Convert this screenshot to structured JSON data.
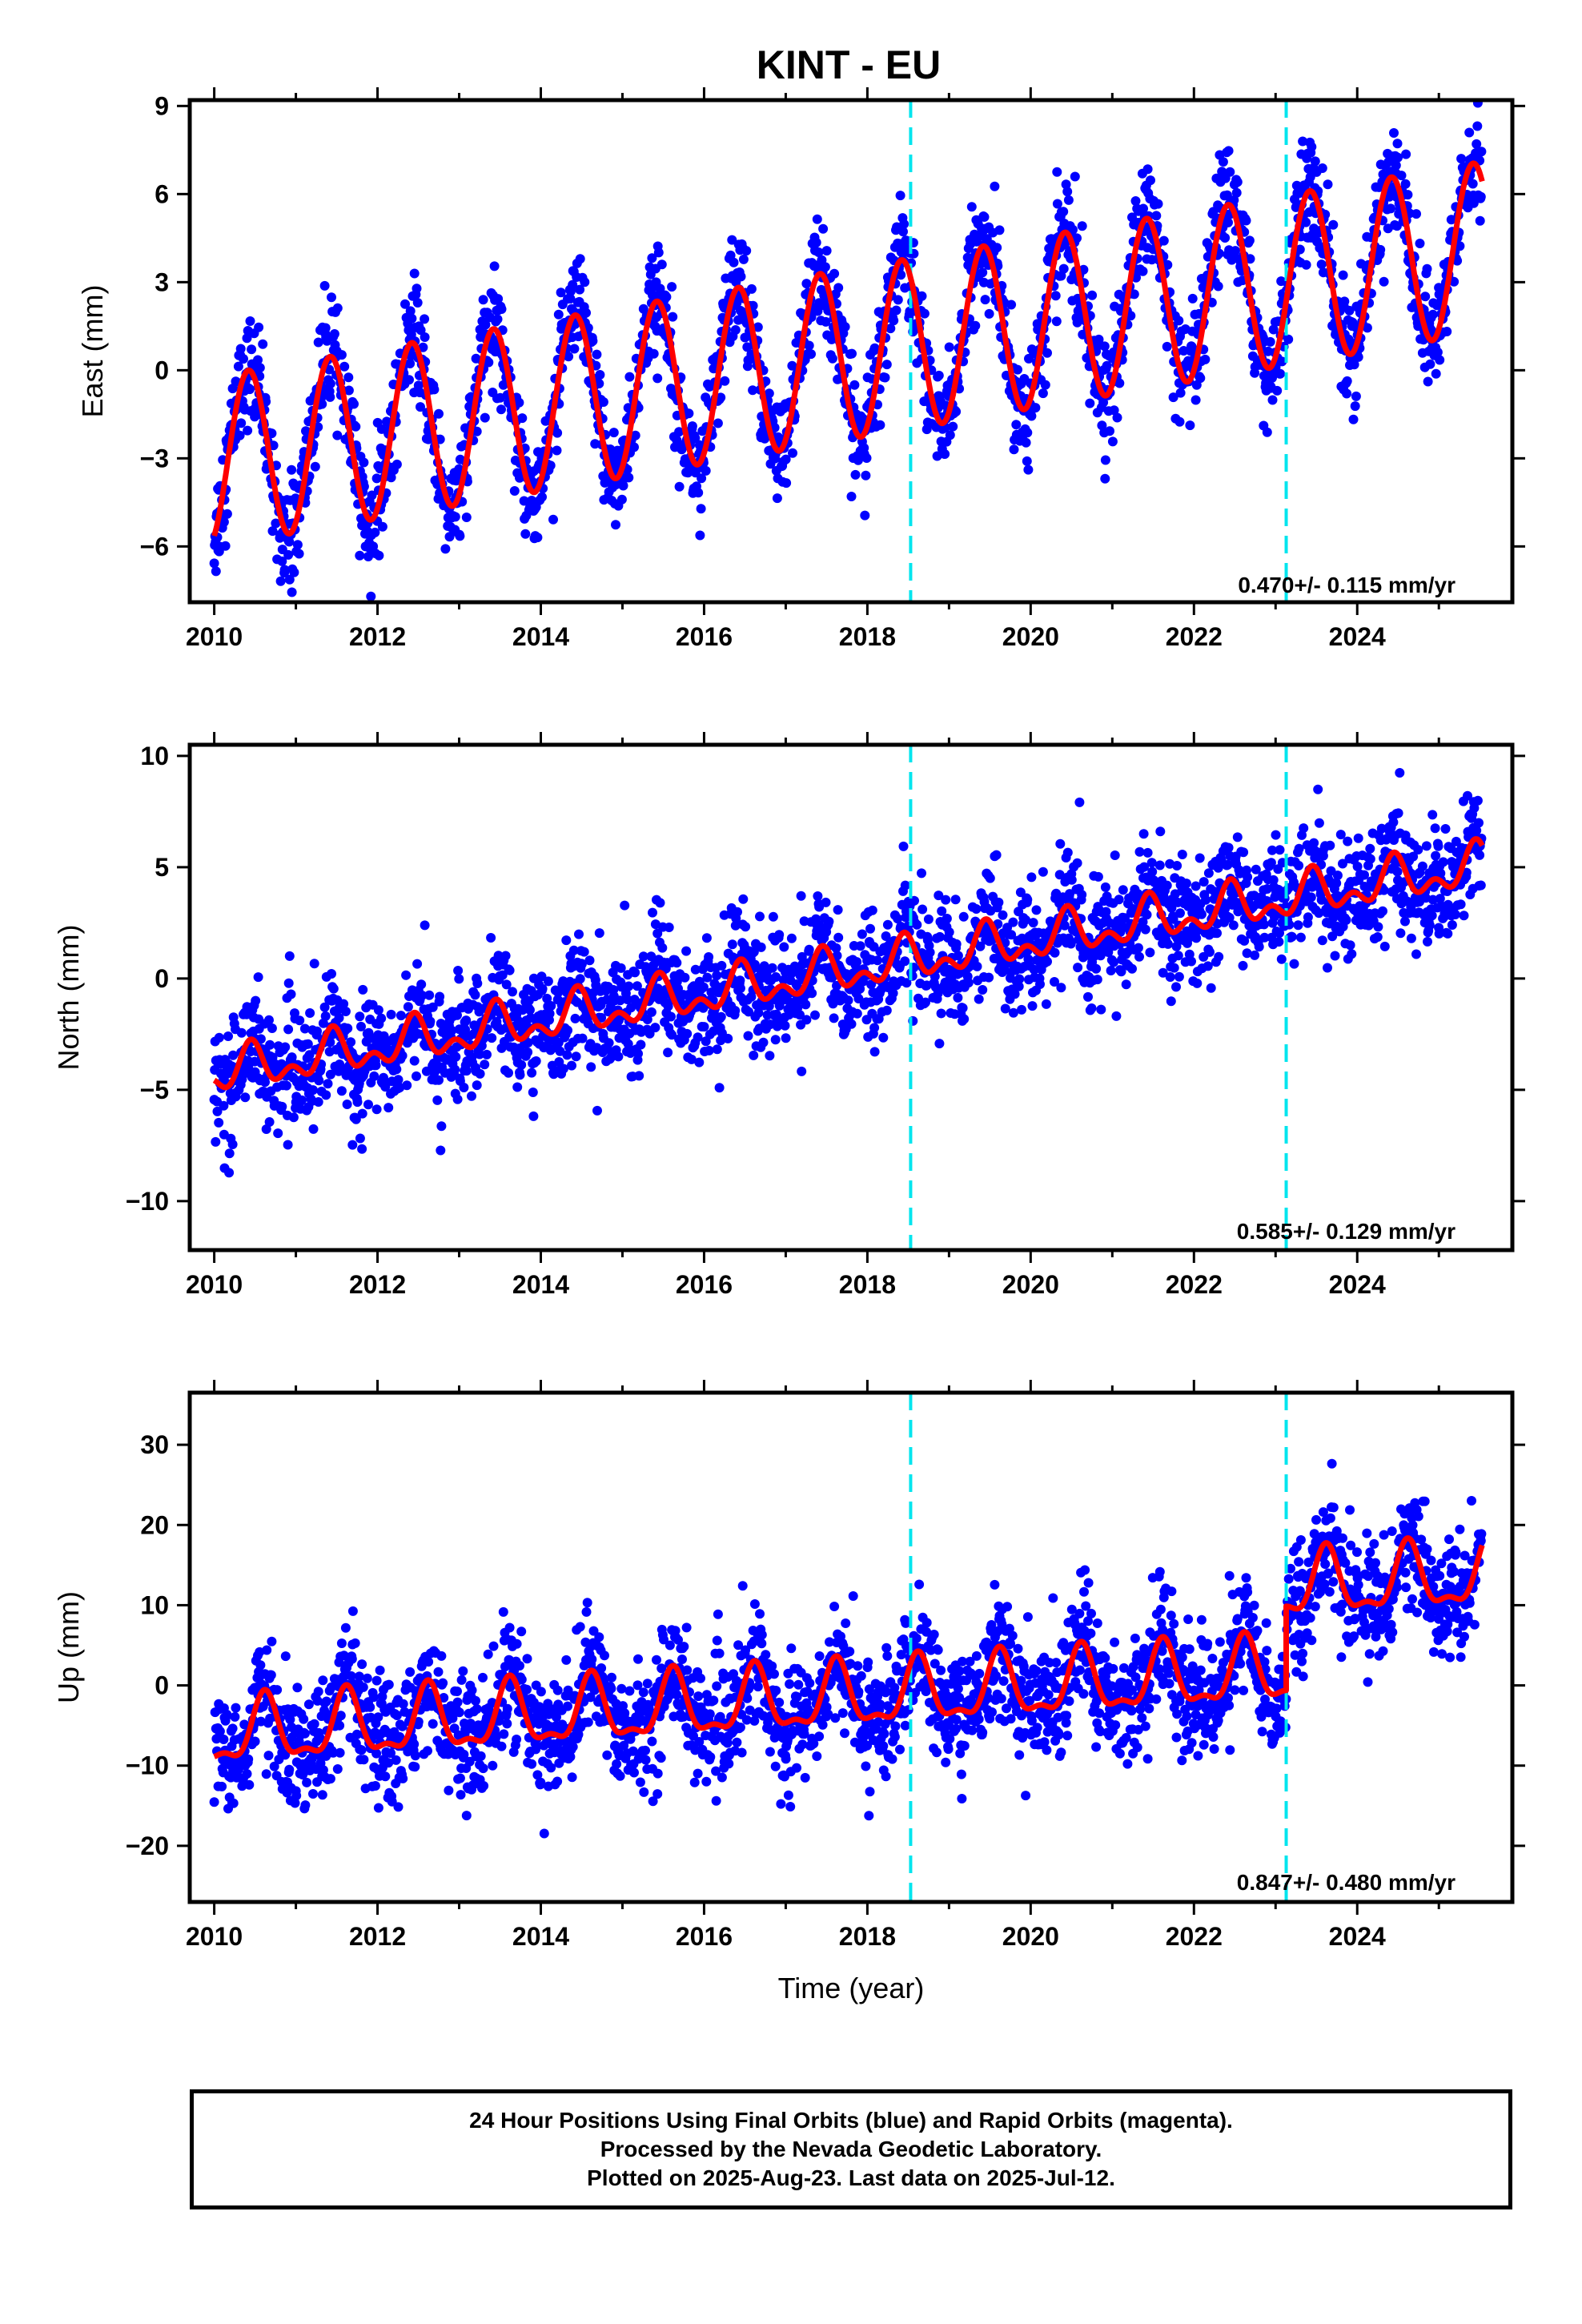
{
  "chart_data": {
    "type": "scatter",
    "title": "KINT - EU",
    "xlabel": "Time (year)",
    "xlim": [
      2009.7,
      2025.9
    ],
    "x_ticks": [
      "2010",
      "2012",
      "2014",
      "2016",
      "2018",
      "2020",
      "2022",
      "2024"
    ],
    "x_tick_values": [
      2010,
      2012,
      2014,
      2016,
      2018,
      2020,
      2022,
      2024
    ],
    "offsets": [
      2018.53,
      2023.13
    ],
    "colors": {
      "points": "#0000ff",
      "model": "#ff0000",
      "offset_line": "#00e5ee",
      "frame": "#000000"
    },
    "panels": [
      {
        "name": "east",
        "ylabel": "East (mm)",
        "ylim": [
          -7.9,
          9.2
        ],
        "y_ticks": [
          "−6",
          "−3",
          "0",
          "3",
          "6",
          "9"
        ],
        "y_tick_values": [
          -6,
          -3,
          0,
          3,
          6,
          9
        ],
        "rate_label": "0.470+/- 0.115 mm/yr",
        "model": {
          "start": -3.1,
          "trend": 0.47,
          "amp": 2.9,
          "peak_phase": 0.42,
          "semi_amp": 0.0,
          "steps": [],
          "noise": 0.9
        },
        "point_span": [
          2010.0,
          2025.53
        ]
      },
      {
        "name": "north",
        "ylabel": "North (mm)",
        "ylim": [
          -12.2,
          10.5
        ],
        "y_ticks": [
          "−10",
          "−5",
          "0",
          "5",
          "10"
        ],
        "y_tick_values": [
          -10,
          -5,
          0,
          5,
          10
        ],
        "rate_label": "0.585+/- 0.129 mm/yr",
        "model": {
          "start": -4.3,
          "trend": 0.6,
          "amp": 0.75,
          "peak_phase": 0.45,
          "semi_amp": 0.55,
          "steps": [],
          "noise": 1.3
        },
        "point_span": [
          2010.0,
          2025.53
        ]
      },
      {
        "name": "up",
        "ylabel": "Up (mm)",
        "ylim": [
          -27,
          36.5
        ],
        "y_ticks": [
          "−20",
          "−10",
          "0",
          "10",
          "20",
          "30"
        ],
        "y_tick_values": [
          -20,
          -10,
          0,
          10,
          20,
          30
        ],
        "rate_label": "0.847+/- 0.480 mm/yr",
        "model": {
          "start": -6.2,
          "trend": 0.6,
          "amp": 3.8,
          "peak_phase": 0.62,
          "semi_amp": 1.5,
          "steps": [
            {
              "t": 2023.13,
              "size": 10.5
            }
          ],
          "noise": 3.6
        },
        "point_span": [
          2010.0,
          2025.53
        ]
      }
    ]
  },
  "footer": {
    "line1": "24 Hour Positions Using Final Orbits (blue) and Rapid Orbits (magenta).",
    "line2": "Processed by the Nevada Geodetic Laboratory.",
    "line3": "Plotted on 2025-Aug-23. Last data on 2025-Jul-12."
  }
}
